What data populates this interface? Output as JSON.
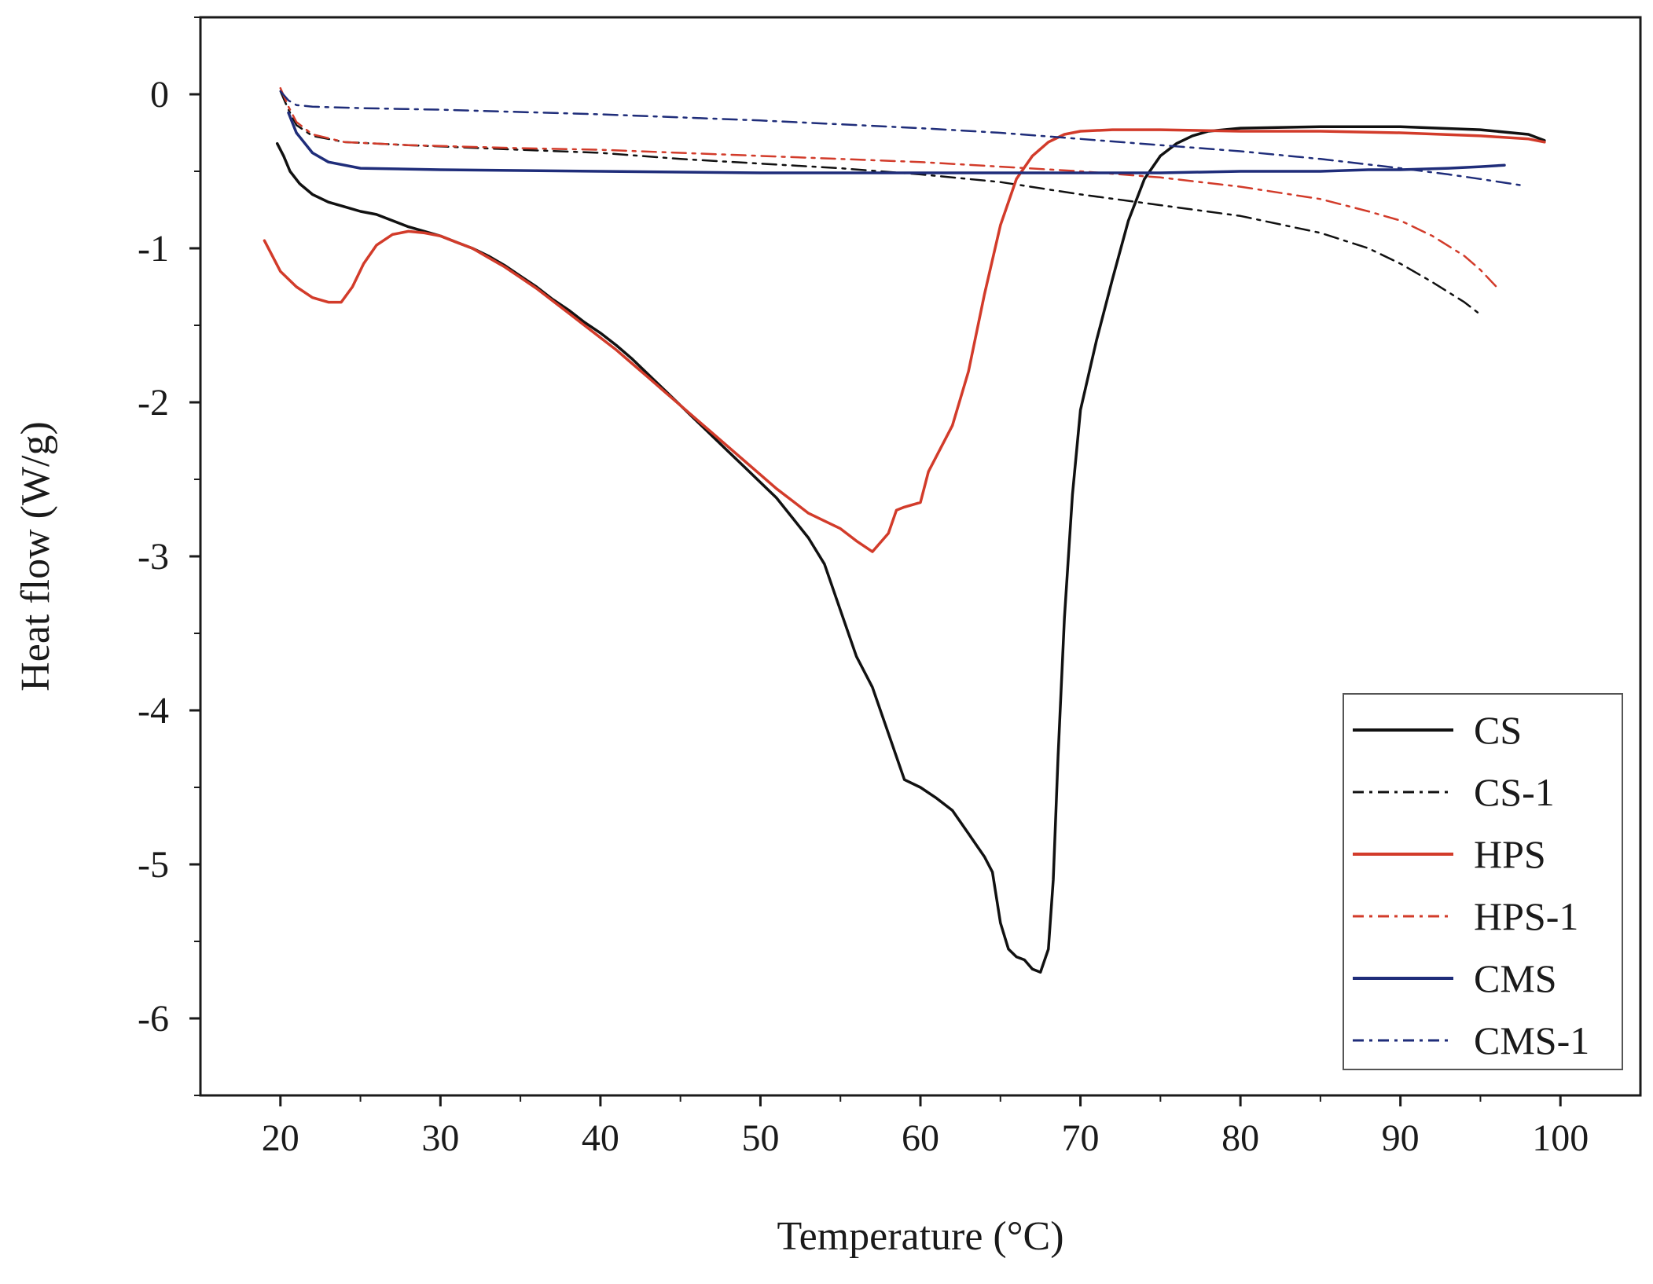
{
  "chart_data": {
    "type": "line",
    "title": "",
    "xlabel": "Temperature (°C)",
    "ylabel": "Heat flow (W/g)",
    "xlim": [
      15,
      105
    ],
    "ylim": [
      -6.5,
      0.5
    ],
    "xticks": [
      20,
      30,
      40,
      50,
      60,
      70,
      80,
      90,
      100
    ],
    "yticks": [
      0,
      -1,
      -2,
      -3,
      -4,
      -5,
      -6
    ],
    "grid": false,
    "legend_position": "bottom-right",
    "series": [
      {
        "name": "CS",
        "color": "#111111",
        "dash": "solid",
        "points": [
          [
            19.8,
            -0.32
          ],
          [
            20.2,
            -0.4
          ],
          [
            20.6,
            -0.5
          ],
          [
            21.2,
            -0.58
          ],
          [
            22,
            -0.65
          ],
          [
            23,
            -0.7
          ],
          [
            24,
            -0.73
          ],
          [
            25,
            -0.76
          ],
          [
            26,
            -0.78
          ],
          [
            27,
            -0.82
          ],
          [
            28,
            -0.86
          ],
          [
            29,
            -0.89
          ],
          [
            30,
            -0.92
          ],
          [
            31,
            -0.96
          ],
          [
            32,
            -1.0
          ],
          [
            33,
            -1.05
          ],
          [
            34,
            -1.11
          ],
          [
            35,
            -1.18
          ],
          [
            36,
            -1.25
          ],
          [
            37,
            -1.33
          ],
          [
            38,
            -1.4
          ],
          [
            39,
            -1.48
          ],
          [
            40,
            -1.55
          ],
          [
            41,
            -1.63
          ],
          [
            42,
            -1.72
          ],
          [
            43,
            -1.82
          ],
          [
            44,
            -1.92
          ],
          [
            45,
            -2.02
          ],
          [
            46,
            -2.12
          ],
          [
            47,
            -2.22
          ],
          [
            48,
            -2.32
          ],
          [
            49,
            -2.42
          ],
          [
            50,
            -2.52
          ],
          [
            51,
            -2.62
          ],
          [
            52,
            -2.75
          ],
          [
            53,
            -2.88
          ],
          [
            54,
            -3.05
          ],
          [
            55,
            -3.35
          ],
          [
            56,
            -3.65
          ],
          [
            57,
            -3.85
          ],
          [
            58,
            -4.15
          ],
          [
            59,
            -4.45
          ],
          [
            60,
            -4.5
          ],
          [
            61,
            -4.57
          ],
          [
            62,
            -4.65
          ],
          [
            63,
            -4.8
          ],
          [
            64,
            -4.95
          ],
          [
            64.5,
            -5.05
          ],
          [
            65,
            -5.38
          ],
          [
            65.5,
            -5.55
          ],
          [
            66,
            -5.6
          ],
          [
            66.5,
            -5.62
          ],
          [
            67,
            -5.68
          ],
          [
            67.5,
            -5.7
          ],
          [
            68,
            -5.55
          ],
          [
            68.3,
            -5.1
          ],
          [
            68.6,
            -4.3
          ],
          [
            69,
            -3.4
          ],
          [
            69.5,
            -2.6
          ],
          [
            70,
            -2.05
          ],
          [
            71,
            -1.6
          ],
          [
            72,
            -1.2
          ],
          [
            73,
            -0.82
          ],
          [
            74,
            -0.55
          ],
          [
            75,
            -0.4
          ],
          [
            76,
            -0.32
          ],
          [
            77,
            -0.27
          ],
          [
            78,
            -0.24
          ],
          [
            80,
            -0.22
          ],
          [
            85,
            -0.21
          ],
          [
            90,
            -0.21
          ],
          [
            95,
            -0.23
          ],
          [
            98,
            -0.26
          ],
          [
            99,
            -0.3
          ]
        ]
      },
      {
        "name": "CS-1",
        "color": "#111111",
        "dash": "dash-dot",
        "points": [
          [
            20,
            0.02
          ],
          [
            20.5,
            -0.1
          ],
          [
            21,
            -0.2
          ],
          [
            22,
            -0.27
          ],
          [
            24,
            -0.31
          ],
          [
            28,
            -0.33
          ],
          [
            35,
            -0.36
          ],
          [
            40,
            -0.38
          ],
          [
            45,
            -0.42
          ],
          [
            50,
            -0.45
          ],
          [
            55,
            -0.48
          ],
          [
            60,
            -0.52
          ],
          [
            65,
            -0.57
          ],
          [
            70,
            -0.65
          ],
          [
            75,
            -0.72
          ],
          [
            80,
            -0.79
          ],
          [
            85,
            -0.9
          ],
          [
            88,
            -1.0
          ],
          [
            90,
            -1.1
          ],
          [
            92,
            -1.22
          ],
          [
            94,
            -1.35
          ],
          [
            95,
            -1.43
          ]
        ]
      },
      {
        "name": "HPS",
        "color": "#d23b2a",
        "dash": "solid",
        "points": [
          [
            19,
            -0.95
          ],
          [
            19.5,
            -1.05
          ],
          [
            20,
            -1.15
          ],
          [
            21,
            -1.25
          ],
          [
            22,
            -1.32
          ],
          [
            23,
            -1.35
          ],
          [
            23.8,
            -1.35
          ],
          [
            24.5,
            -1.25
          ],
          [
            25.2,
            -1.1
          ],
          [
            26,
            -0.98
          ],
          [
            27,
            -0.91
          ],
          [
            28,
            -0.89
          ],
          [
            29,
            -0.9
          ],
          [
            30,
            -0.92
          ],
          [
            31,
            -0.96
          ],
          [
            32,
            -1.0
          ],
          [
            33,
            -1.06
          ],
          [
            34,
            -1.12
          ],
          [
            35,
            -1.19
          ],
          [
            36,
            -1.26
          ],
          [
            37,
            -1.34
          ],
          [
            38,
            -1.42
          ],
          [
            39,
            -1.5
          ],
          [
            40,
            -1.58
          ],
          [
            41,
            -1.66
          ],
          [
            42,
            -1.75
          ],
          [
            43,
            -1.84
          ],
          [
            44,
            -1.93
          ],
          [
            45,
            -2.02
          ],
          [
            46,
            -2.11
          ],
          [
            47,
            -2.2
          ],
          [
            48,
            -2.29
          ],
          [
            49,
            -2.38
          ],
          [
            50,
            -2.47
          ],
          [
            51,
            -2.56
          ],
          [
            52,
            -2.64
          ],
          [
            53,
            -2.72
          ],
          [
            54,
            -2.77
          ],
          [
            55,
            -2.82
          ],
          [
            56,
            -2.9
          ],
          [
            57,
            -2.97
          ],
          [
            58,
            -2.85
          ],
          [
            58.5,
            -2.7
          ],
          [
            59,
            -2.68
          ],
          [
            60,
            -2.65
          ],
          [
            60.5,
            -2.45
          ],
          [
            61,
            -2.35
          ],
          [
            62,
            -2.15
          ],
          [
            63,
            -1.8
          ],
          [
            64,
            -1.3
          ],
          [
            65,
            -0.85
          ],
          [
            66,
            -0.55
          ],
          [
            67,
            -0.4
          ],
          [
            68,
            -0.31
          ],
          [
            69,
            -0.26
          ],
          [
            70,
            -0.24
          ],
          [
            72,
            -0.23
          ],
          [
            75,
            -0.23
          ],
          [
            80,
            -0.24
          ],
          [
            85,
            -0.24
          ],
          [
            90,
            -0.25
          ],
          [
            95,
            -0.27
          ],
          [
            98,
            -0.29
          ],
          [
            99,
            -0.31
          ]
        ]
      },
      {
        "name": "HPS-1",
        "color": "#d23b2a",
        "dash": "dash-dot",
        "points": [
          [
            20,
            0.04
          ],
          [
            20.5,
            -0.08
          ],
          [
            21,
            -0.18
          ],
          [
            22,
            -0.26
          ],
          [
            24,
            -0.31
          ],
          [
            28,
            -0.33
          ],
          [
            35,
            -0.35
          ],
          [
            40,
            -0.36
          ],
          [
            45,
            -0.38
          ],
          [
            50,
            -0.4
          ],
          [
            55,
            -0.42
          ],
          [
            60,
            -0.44
          ],
          [
            65,
            -0.47
          ],
          [
            70,
            -0.5
          ],
          [
            75,
            -0.54
          ],
          [
            80,
            -0.6
          ],
          [
            85,
            -0.68
          ],
          [
            88,
            -0.76
          ],
          [
            90,
            -0.82
          ],
          [
            92,
            -0.92
          ],
          [
            94,
            -1.05
          ],
          [
            95,
            -1.14
          ],
          [
            96,
            -1.25
          ]
        ]
      },
      {
        "name": "CMS",
        "color": "#1f2d7a",
        "dash": "solid",
        "points": [
          [
            20.5,
            -0.12
          ],
          [
            21,
            -0.25
          ],
          [
            22,
            -0.38
          ],
          [
            23,
            -0.44
          ],
          [
            25,
            -0.48
          ],
          [
            30,
            -0.49
          ],
          [
            40,
            -0.5
          ],
          [
            50,
            -0.51
          ],
          [
            60,
            -0.51
          ],
          [
            65,
            -0.51
          ],
          [
            70,
            -0.51
          ],
          [
            75,
            -0.51
          ],
          [
            80,
            -0.5
          ],
          [
            85,
            -0.5
          ],
          [
            88,
            -0.49
          ],
          [
            90,
            -0.49
          ],
          [
            93,
            -0.48
          ],
          [
            95,
            -0.47
          ],
          [
            96.5,
            -0.46
          ]
        ]
      },
      {
        "name": "CMS-1",
        "color": "#1f2d7a",
        "dash": "dash-dot",
        "points": [
          [
            20,
            0.02
          ],
          [
            20.5,
            -0.04
          ],
          [
            21,
            -0.07
          ],
          [
            22,
            -0.08
          ],
          [
            25,
            -0.09
          ],
          [
            30,
            -0.1
          ],
          [
            40,
            -0.13
          ],
          [
            50,
            -0.17
          ],
          [
            60,
            -0.22
          ],
          [
            65,
            -0.25
          ],
          [
            70,
            -0.29
          ],
          [
            75,
            -0.33
          ],
          [
            80,
            -0.37
          ],
          [
            85,
            -0.42
          ],
          [
            90,
            -0.48
          ],
          [
            93,
            -0.52
          ],
          [
            95,
            -0.55
          ],
          [
            97.5,
            -0.59
          ]
        ]
      }
    ]
  }
}
